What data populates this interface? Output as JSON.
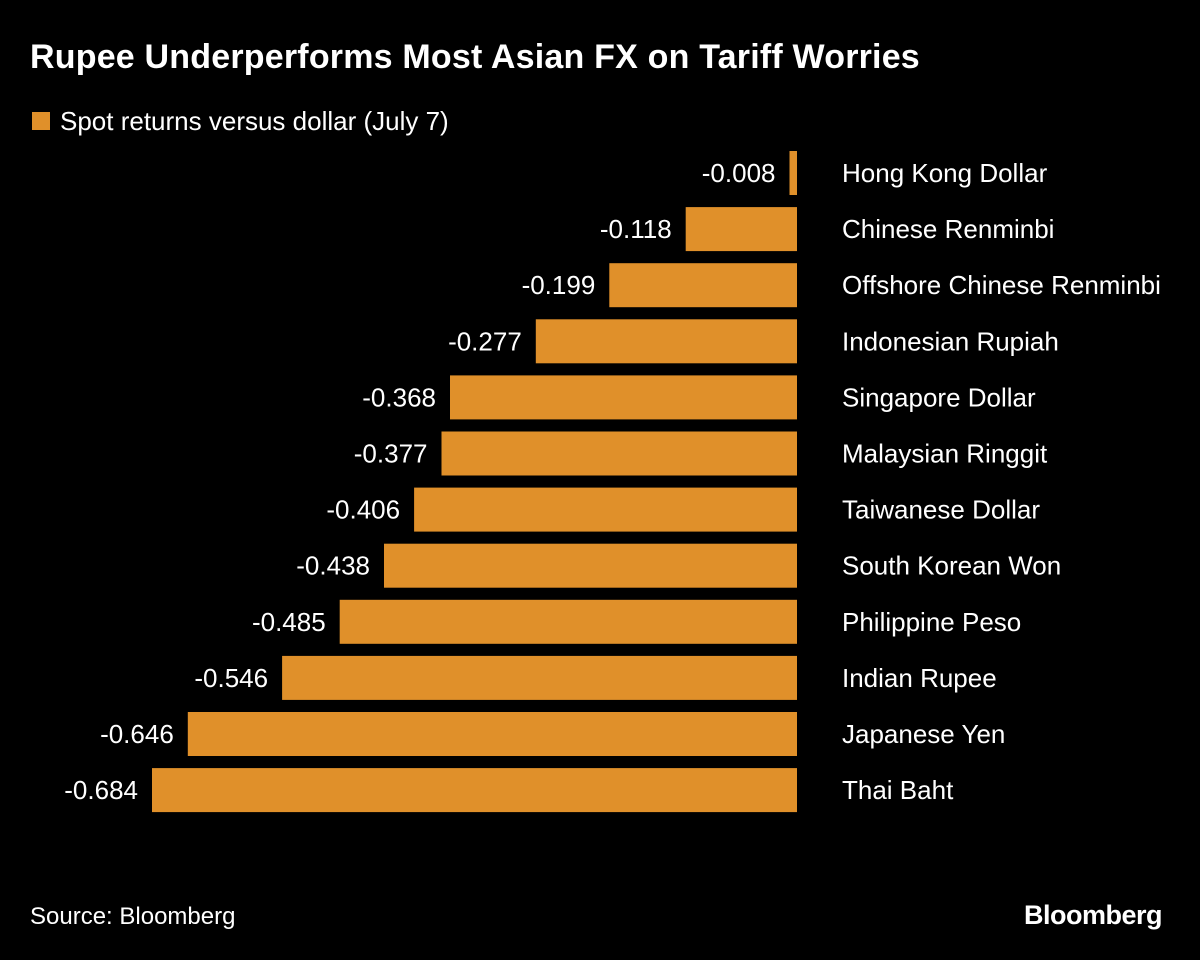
{
  "colors": {
    "background": "#000000",
    "bar": "#E0902A",
    "text": "#ffffff"
  },
  "chart_data": {
    "type": "bar",
    "orientation": "horizontal",
    "title": "Rupee Underperforms Most Asian FX on Tariff Worries",
    "legend": [
      "Spot returns versus dollar (July 7)"
    ],
    "categories": [
      "Hong Kong Dollar",
      "Chinese Renminbi",
      "Offshore Chinese Renminbi",
      "Indonesian Rupiah",
      "Singapore Dollar",
      "Malaysian Ringgit",
      "Taiwanese Dollar",
      "South Korean Won",
      "Philippine Peso",
      "Indian Rupee",
      "Japanese Yen",
      "Thai Baht"
    ],
    "values": [
      -0.008,
      -0.118,
      -0.199,
      -0.277,
      -0.368,
      -0.377,
      -0.406,
      -0.438,
      -0.485,
      -0.546,
      -0.646,
      -0.684
    ],
    "value_labels": [
      "-0.008",
      "-0.118",
      "-0.199",
      "-0.277",
      "-0.368",
      "-0.377",
      "-0.406",
      "-0.438",
      "-0.485",
      "-0.546",
      "-0.646",
      "-0.684"
    ],
    "xlim": [
      -0.684,
      0
    ],
    "xlabel": "",
    "ylabel": "",
    "grid": false
  },
  "footer": {
    "source": "Source: Bloomberg",
    "brand": "Bloomberg"
  }
}
